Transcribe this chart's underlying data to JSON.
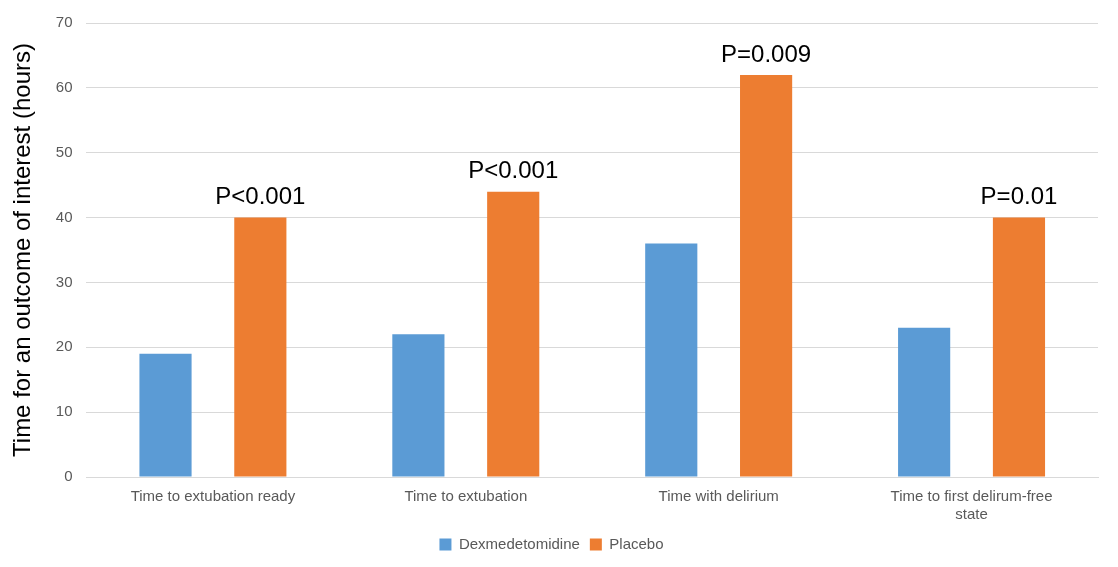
{
  "chart_data": {
    "type": "bar",
    "ylabel": "Time for an outcome of interest (hours)",
    "categories": [
      "Time to extubation ready",
      "Time to extubation",
      "Time with delirium",
      "Time to first delirum-free state"
    ],
    "series": [
      {
        "name": "Dexmedetomidine",
        "color": "#5b9bd5",
        "values": [
          19,
          22,
          36,
          23
        ]
      },
      {
        "name": "Placebo",
        "color": "#ed7d31",
        "values": [
          40,
          44,
          62,
          40
        ]
      }
    ],
    "ylim": [
      0,
      70
    ],
    "yticks": [
      0,
      10,
      20,
      30,
      40,
      50,
      60,
      70
    ],
    "grid": "y",
    "legend": "bottom",
    "annotations": [
      "P<0.001",
      "P<0.001",
      "P=0.009",
      "P=0.01"
    ]
  }
}
